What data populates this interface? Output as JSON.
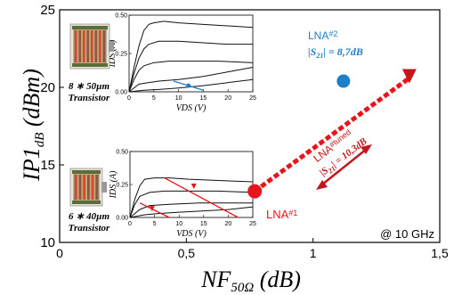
{
  "chart_data": {
    "type": "scatter",
    "xlabel": "NF50Ω (dB)",
    "ylabel": "IP1dB (dBm)",
    "xlim": [
      0,
      1.5
    ],
    "ylim": [
      10,
      25
    ],
    "x_ticks": [
      "0",
      "0,5",
      "1",
      "1,5"
    ],
    "y_ticks": [
      "10",
      "15",
      "20",
      "25"
    ],
    "annotation_frequency": "@ 10 GHz",
    "points": [
      {
        "name": "LNA#1",
        "x": 0.77,
        "y": 13.3,
        "color": "#e8141c"
      },
      {
        "name": "LNA#2",
        "x": 1.12,
        "y": 20.4,
        "color": "#1f7fc9",
        "s21_label": "|S21| = 8,7dB"
      },
      {
        "name": "LNA#tuned",
        "x": 1.38,
        "y": 20.6,
        "color": "#c4161c",
        "s21_label": "|S21| = 10,3dB"
      }
    ],
    "insets": [
      {
        "transistor_label": "8 ∗ 50µm",
        "transistor_caption": "Transistor",
        "xlabel": "VDS (V)",
        "ylabel": "IDS (A)",
        "x_ticks": [
          "0",
          "5",
          "10",
          "15",
          "20",
          "25"
        ],
        "y_ticks": [
          "0.00",
          "0.25",
          "0.50"
        ],
        "xlim": [
          0,
          25
        ],
        "ylim": [
          0,
          0.5
        ],
        "curves": [
          {
            "x": [
              0,
              1,
              2,
              3,
              4,
              5,
              7,
              10,
              15,
              20,
              25
            ],
            "y": [
              0,
              0.16,
              0.3,
              0.4,
              0.44,
              0.45,
              0.46,
              0.45,
              0.44,
              0.43,
              0.42
            ]
          },
          {
            "x": [
              0,
              1,
              2,
              3,
              4,
              6,
              10,
              15,
              20,
              25
            ],
            "y": [
              0,
              0.12,
              0.22,
              0.28,
              0.31,
              0.33,
              0.33,
              0.32,
              0.31,
              0.31
            ]
          },
          {
            "x": [
              0,
              1,
              2,
              3,
              5,
              8,
              12,
              18,
              25
            ],
            "y": [
              0,
              0.08,
              0.14,
              0.17,
              0.19,
              0.2,
              0.2,
              0.2,
              0.19
            ]
          },
          {
            "x": [
              0,
              2,
              4,
              6,
              10,
              15,
              20,
              25
            ],
            "y": [
              0,
              0.05,
              0.06,
              0.07,
              0.08,
              0.1,
              0.13,
              0.16
            ]
          },
          {
            "x": [
              0,
              3,
              6,
              10,
              15,
              20,
              25
            ],
            "y": [
              0,
              0.01,
              0.015,
              0.025,
              0.04,
              0.06,
              0.08
            ]
          }
        ],
        "load_line": {
          "x": [
            9,
            15
          ],
          "y": [
            0.07,
            0.01
          ],
          "point": {
            "x": 12,
            "y": 0.04
          }
        }
      },
      {
        "transistor_label": "6 ∗ 40µm",
        "transistor_caption": "Transistor",
        "xlabel": "VDS (V)",
        "ylabel": "IDS (A)",
        "x_ticks": [
          "0",
          "5",
          "10",
          "15",
          "20",
          "25"
        ],
        "y_ticks": [
          "0.00",
          "0.25",
          "0.50"
        ],
        "xlim": [
          0,
          25
        ],
        "ylim": [
          0,
          0.5
        ],
        "curves": [
          {
            "x": [
              0,
              1,
              2,
              3,
              5,
              8,
              12,
              18,
              25
            ],
            "y": [
              0,
              0.14,
              0.24,
              0.29,
              0.3,
              0.3,
              0.29,
              0.28,
              0.27
            ]
          },
          {
            "x": [
              0,
              1,
              2,
              4,
              7,
              12,
              18,
              25
            ],
            "y": [
              0,
              0.1,
              0.16,
              0.19,
              0.2,
              0.2,
              0.2,
              0.19
            ]
          },
          {
            "x": [
              0,
              2,
              4,
              8,
              14,
              20,
              25
            ],
            "y": [
              0,
              0.06,
              0.09,
              0.1,
              0.11,
              0.11,
              0.11
            ]
          },
          {
            "x": [
              0,
              3,
              6,
              10,
              15,
              20,
              25
            ],
            "y": [
              0,
              0.02,
              0.03,
              0.04,
              0.05,
              0.06,
              0.08
            ]
          }
        ],
        "load_lines": [
          {
            "x": [
              7,
              22
            ],
            "y": [
              0.3,
              0.0
            ]
          },
          {
            "x": [
              2,
              8
            ],
            "y": [
              0.11,
              0.0
            ]
          }
        ]
      }
    ]
  }
}
